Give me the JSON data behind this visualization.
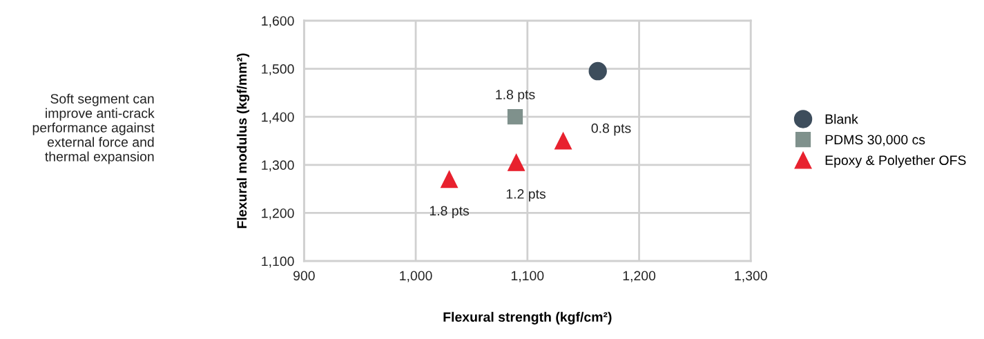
{
  "chart_data": {
    "type": "scatter",
    "xlabel": "Flexural strength (kgf/cm²)",
    "ylabel": "Flexural modulus (kgf/mm²)",
    "xlim": [
      900,
      1300
    ],
    "xticks": [
      {
        "value": 900,
        "label": "900"
      },
      {
        "value": 1000,
        "label": "1,000"
      },
      {
        "value": 1100,
        "label": "1,100"
      },
      {
        "value": 1200,
        "label": "1,200"
      },
      {
        "value": 1300,
        "label": "1,300"
      }
    ],
    "ylim": [
      1100,
      1600
    ],
    "yticks": [
      {
        "value": 1100,
        "label": "1,100"
      },
      {
        "value": 1200,
        "label": "1,200"
      },
      {
        "value": 1300,
        "label": "1,300"
      },
      {
        "value": 1400,
        "label": "1,400"
      },
      {
        "value": 1500,
        "label": "1,500"
      },
      {
        "value": 1600,
        "label": "1,600"
      }
    ],
    "grid": true,
    "legend": "right",
    "series": [
      {
        "name": "Blank",
        "color": "#3d4d5c",
        "marker": "circle",
        "x": [
          1163
        ],
        "values": [
          1495
        ]
      },
      {
        "name": "PDMS 30,000 cs",
        "color": "#7f918c",
        "marker": "square",
        "x": [
          1089
        ],
        "values": [
          1400
        ]
      },
      {
        "name": "Epoxy & Polyether OFS",
        "color": "#e8212e",
        "marker": "triangle",
        "x": [
          1030,
          1090,
          1132
        ],
        "values": [
          1270,
          1305,
          1350
        ]
      }
    ],
    "annotations": [
      {
        "text": "1.8 pts",
        "x": 1089,
        "y": 1400
      },
      {
        "text": "0.8 pts",
        "x": 1132,
        "y": 1350
      },
      {
        "text": "1.2 pts",
        "x": 1090,
        "y": 1305
      },
      {
        "text": "1.8 pts",
        "x": 1030,
        "y": 1270
      },
      "Soft segment can\nimprove anti-crack\nperformance against\nexternal force and\nthermal expansion"
    ]
  }
}
